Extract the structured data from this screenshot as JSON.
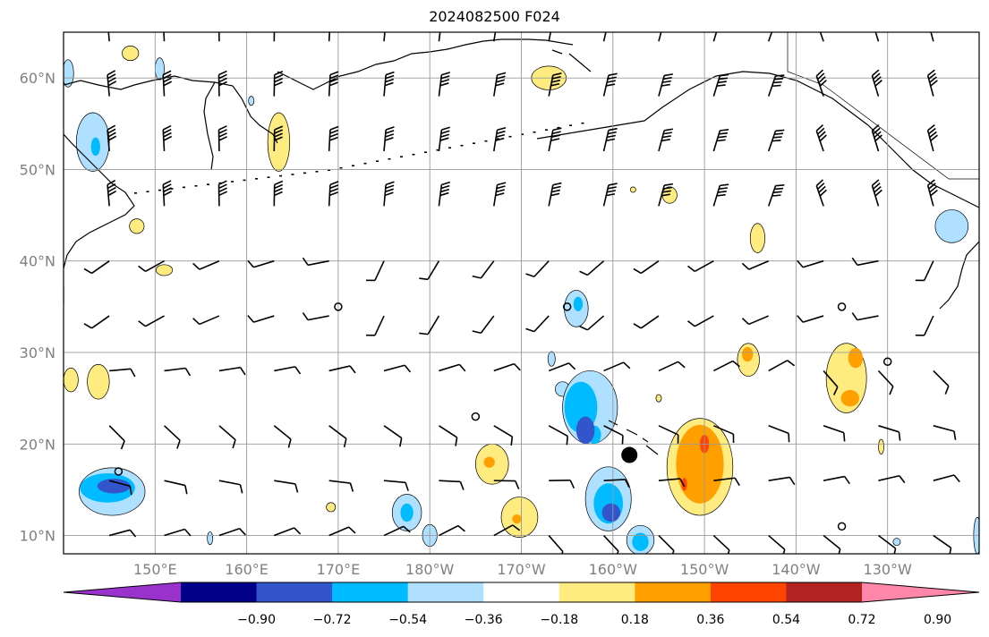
{
  "title": "2024082500 F024",
  "map": {
    "lon_range": [
      140,
      240
    ],
    "lat_range": [
      8,
      65
    ],
    "lon_ticks": [
      {
        "lon": 150,
        "label": "150°E"
      },
      {
        "lon": 160,
        "label": "160°E"
      },
      {
        "lon": 170,
        "label": "170°E"
      },
      {
        "lon": 180,
        "label": "180°W"
      },
      {
        "lon": 190,
        "label": "170°W"
      },
      {
        "lon": 200,
        "label": "160°W"
      },
      {
        "lon": 210,
        "label": "150°W"
      },
      {
        "lon": 220,
        "label": "140°W"
      },
      {
        "lon": 230,
        "label": "130°W"
      }
    ],
    "lat_ticks": [
      {
        "lat": 10,
        "label": "10°N"
      },
      {
        "lat": 20,
        "label": "20°N"
      },
      {
        "lat": 30,
        "label": "30°N"
      },
      {
        "lat": 40,
        "label": "40°N"
      },
      {
        "lat": 50,
        "label": "50°N"
      },
      {
        "lat": 60,
        "label": "60°N"
      }
    ],
    "grid": true,
    "marker": {
      "lon": 201.8,
      "lat": 18.8,
      "color": "#000000"
    }
  },
  "colorbar": {
    "colors": [
      "#9933cc",
      "#000088",
      "#3355cc",
      "#00bbff",
      "#b0e0ff",
      "#ffffff",
      "#ffec80",
      "#ffa000",
      "#ff4400",
      "#b22222",
      "#ff88aa"
    ],
    "labels": [
      "−0.90",
      "−0.72",
      "−0.54",
      "−0.36",
      "−0.18",
      "0.18",
      "0.36",
      "0.54",
      "0.72",
      "0.90"
    ],
    "extend": "both"
  },
  "fields": {
    "positive": [
      {
        "lon": 147.3,
        "lat": 62.7,
        "rx": 0.9,
        "ry": 0.8,
        "level": 1
      },
      {
        "lon": 163.5,
        "lat": 53.0,
        "rx": 1.2,
        "ry": 3.2,
        "level": 1
      },
      {
        "lon": 193.0,
        "lat": 60.0,
        "rx": 1.9,
        "ry": 1.3,
        "level": 1
      },
      {
        "lon": 148.0,
        "lat": 43.8,
        "rx": 0.8,
        "ry": 0.8,
        "level": 1
      },
      {
        "lon": 151.0,
        "lat": 39.0,
        "rx": 0.9,
        "ry": 0.6,
        "level": 1
      },
      {
        "lon": 140.8,
        "lat": 27.0,
        "rx": 0.8,
        "ry": 1.3,
        "level": 1
      },
      {
        "lon": 143.8,
        "lat": 26.8,
        "rx": 1.2,
        "ry": 1.9,
        "level": 1
      },
      {
        "lon": 206.2,
        "lat": 47.2,
        "rx": 0.8,
        "ry": 0.9,
        "level": 1
      },
      {
        "lon": 215.8,
        "lat": 42.5,
        "rx": 0.8,
        "ry": 1.6,
        "level": 1
      },
      {
        "lon": 205.0,
        "lat": 25.0,
        "rx": 0.3,
        "ry": 0.4,
        "level": 1
      },
      {
        "lon": 209.5,
        "lat": 17.5,
        "rx": 3.6,
        "ry": 5.3,
        "level": 1
      },
      {
        "lon": 209.5,
        "lat": 17.8,
        "rx": 2.6,
        "ry": 4.3,
        "level": 2
      },
      {
        "lon": 210.0,
        "lat": 20.0,
        "rx": 0.5,
        "ry": 1.0,
        "level": 3
      },
      {
        "lon": 207.8,
        "lat": 15.6,
        "rx": 0.3,
        "ry": 0.7,
        "level": 3
      },
      {
        "lon": 214.8,
        "lat": 29.2,
        "rx": 1.2,
        "ry": 1.8,
        "level": 1
      },
      {
        "lon": 214.7,
        "lat": 29.8,
        "rx": 0.6,
        "ry": 0.8,
        "level": 2
      },
      {
        "lon": 225.5,
        "lat": 27.2,
        "rx": 2.2,
        "ry": 3.8,
        "level": 1
      },
      {
        "lon": 226.5,
        "lat": 29.4,
        "rx": 0.8,
        "ry": 1.1,
        "level": 2
      },
      {
        "lon": 225.9,
        "lat": 25.0,
        "rx": 1.0,
        "ry": 0.9,
        "level": 2
      },
      {
        "lon": 229.3,
        "lat": 19.7,
        "rx": 0.3,
        "ry": 0.8,
        "level": 1
      },
      {
        "lon": 186.8,
        "lat": 17.8,
        "rx": 1.8,
        "ry": 2.2,
        "level": 1
      },
      {
        "lon": 186.5,
        "lat": 18.0,
        "rx": 0.6,
        "ry": 0.6,
        "level": 2
      },
      {
        "lon": 189.8,
        "lat": 12.0,
        "rx": 2.0,
        "ry": 2.2,
        "level": 1
      },
      {
        "lon": 189.5,
        "lat": 11.8,
        "rx": 0.5,
        "ry": 0.5,
        "level": 2
      },
      {
        "lon": 169.2,
        "lat": 13.1,
        "rx": 0.5,
        "ry": 0.5,
        "level": 1
      },
      {
        "lon": 202.2,
        "lat": 47.8,
        "rx": 0.3,
        "ry": 0.3,
        "level": 1
      }
    ],
    "negative": [
      {
        "lon": 140.5,
        "lat": 60.5,
        "rx": 0.6,
        "ry": 1.5,
        "level": 1
      },
      {
        "lon": 150.5,
        "lat": 61.0,
        "rx": 0.5,
        "ry": 1.2,
        "level": 1
      },
      {
        "lon": 143.2,
        "lat": 53.0,
        "rx": 1.8,
        "ry": 3.2,
        "level": 1
      },
      {
        "lon": 143.5,
        "lat": 52.5,
        "rx": 0.5,
        "ry": 1.0,
        "level": 2
      },
      {
        "lon": 145.3,
        "lat": 14.8,
        "rx": 3.6,
        "ry": 2.6,
        "level": 1
      },
      {
        "lon": 144.8,
        "lat": 15.2,
        "rx": 3.0,
        "ry": 1.6,
        "level": 2
      },
      {
        "lon": 145.5,
        "lat": 15.4,
        "rx": 1.8,
        "ry": 0.8,
        "level": 3
      },
      {
        "lon": 156.0,
        "lat": 9.7,
        "rx": 0.3,
        "ry": 0.7,
        "level": 1
      },
      {
        "lon": 196.0,
        "lat": 34.8,
        "rx": 1.3,
        "ry": 2.0,
        "level": 1
      },
      {
        "lon": 196.2,
        "lat": 35.3,
        "rx": 0.5,
        "ry": 0.8,
        "level": 2
      },
      {
        "lon": 193.3,
        "lat": 29.3,
        "rx": 0.4,
        "ry": 0.8,
        "level": 1
      },
      {
        "lon": 194.5,
        "lat": 26.0,
        "rx": 0.8,
        "ry": 0.8,
        "level": 1
      },
      {
        "lon": 197.5,
        "lat": 24.0,
        "rx": 3.0,
        "ry": 4.0,
        "level": 1
      },
      {
        "lon": 196.5,
        "lat": 24.0,
        "rx": 1.8,
        "ry": 2.8,
        "level": 2
      },
      {
        "lon": 197.0,
        "lat": 21.5,
        "rx": 1.0,
        "ry": 1.5,
        "level": 3
      },
      {
        "lon": 199.5,
        "lat": 14.0,
        "rx": 2.5,
        "ry": 3.5,
        "level": 1
      },
      {
        "lon": 199.5,
        "lat": 13.5,
        "rx": 1.6,
        "ry": 2.2,
        "level": 2
      },
      {
        "lon": 199.8,
        "lat": 12.5,
        "rx": 1.0,
        "ry": 1.0,
        "level": 3
      },
      {
        "lon": 203.0,
        "lat": 9.5,
        "rx": 1.5,
        "ry": 1.6,
        "level": 1
      },
      {
        "lon": 203.0,
        "lat": 9.3,
        "rx": 0.9,
        "ry": 1.0,
        "level": 2
      },
      {
        "lon": 177.5,
        "lat": 12.5,
        "rx": 1.6,
        "ry": 2.0,
        "level": 1
      },
      {
        "lon": 177.5,
        "lat": 12.5,
        "rx": 0.7,
        "ry": 1.0,
        "level": 2
      },
      {
        "lon": 180.0,
        "lat": 10.0,
        "rx": 0.8,
        "ry": 1.2,
        "level": 1
      },
      {
        "lon": 237.0,
        "lat": 43.8,
        "rx": 1.8,
        "ry": 1.8,
        "level": 1
      },
      {
        "lon": 239.8,
        "lat": 10.0,
        "rx": 0.4,
        "ry": 2.0,
        "level": 1
      },
      {
        "lon": 231.0,
        "lat": 9.3,
        "rx": 0.4,
        "ry": 0.4,
        "level": 1
      },
      {
        "lon": 160.5,
        "lat": 57.5,
        "rx": 0.3,
        "ry": 0.5,
        "level": 1
      },
      {
        "lon": 198.0,
        "lat": 21.0,
        "rx": 0.7,
        "ry": 1.0,
        "level": 2
      }
    ]
  },
  "barbs": {
    "calm": [
      {
        "lon": 170,
        "lat": 35
      },
      {
        "lon": 195,
        "lat": 35
      },
      {
        "lon": 225,
        "lat": 35
      },
      {
        "lon": 230,
        "lat": 29
      },
      {
        "lon": 185,
        "lat": 23
      },
      {
        "lon": 146,
        "lat": 17
      },
      {
        "lon": 225,
        "lat": 11
      }
    ]
  }
}
